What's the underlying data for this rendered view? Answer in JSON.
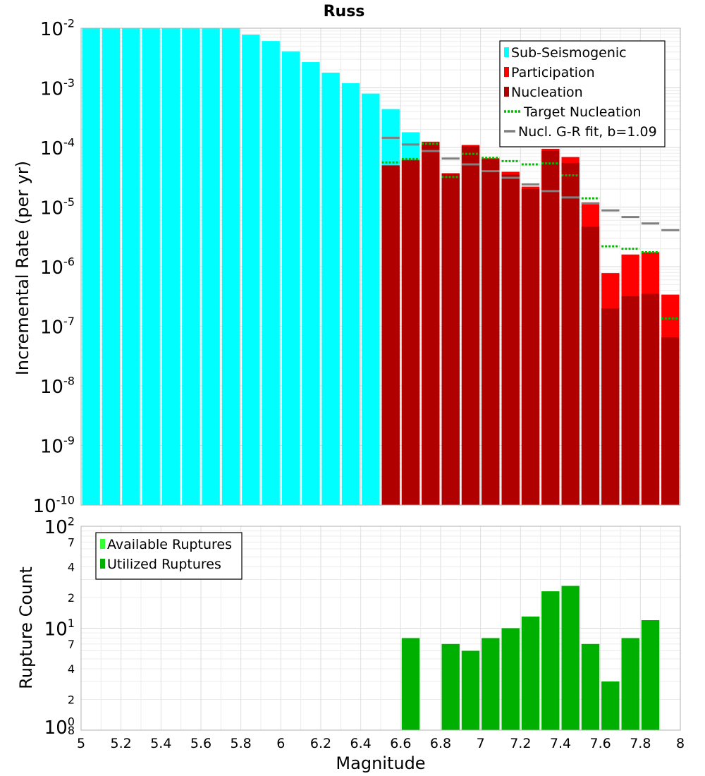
{
  "chart_data": [
    {
      "type": "bar",
      "title": "Russ",
      "xlabel": "",
      "ylabel": "Incremental Rate (per yr)",
      "xlim": [
        5,
        8
      ],
      "ylim": [
        1e-10,
        0.01
      ],
      "yscale": "log",
      "grid": true,
      "legend_position": "top-right",
      "y_tick_labels": [
        {
          "base": "10",
          "exp": "-10"
        },
        {
          "base": "10",
          "exp": "-9"
        },
        {
          "base": "10",
          "exp": "-8"
        },
        {
          "base": "10",
          "exp": "-7"
        },
        {
          "base": "10",
          "exp": "-6"
        },
        {
          "base": "10",
          "exp": "-5"
        },
        {
          "base": "10",
          "exp": "-4"
        },
        {
          "base": "10",
          "exp": "-3"
        },
        {
          "base": "10",
          "exp": "-2"
        }
      ],
      "bin_width": 0.1,
      "series": [
        {
          "name": "Sub-Seismogenic",
          "color": "#00ffff",
          "kind": "bar",
          "x": [
            5.05,
            5.15,
            5.25,
            5.35,
            5.45,
            5.55,
            5.65,
            5.75,
            5.85,
            5.95,
            6.05,
            6.15,
            6.25,
            6.35,
            6.45,
            6.55,
            6.65
          ],
          "values": [
            0.01,
            0.01,
            0.01,
            0.01,
            0.01,
            0.01,
            0.01,
            0.01,
            0.0078,
            0.0061,
            0.0041,
            0.0027,
            0.0018,
            0.0012,
            0.0008,
            0.00044,
            0.00018
          ]
        },
        {
          "name": "Participation",
          "color": "#ff0000",
          "kind": "bar",
          "x": [
            6.55,
            6.65,
            6.75,
            6.85,
            6.95,
            7.05,
            7.15,
            7.25,
            7.35,
            7.45,
            7.55,
            7.65,
            7.75,
            7.85,
            7.95
          ],
          "values": [
            5e-05,
            6.2e-05,
            0.000125,
            3.7e-05,
            0.00011,
            6.6e-05,
            3.9e-05,
            2.2e-05,
            9.5e-05,
            6.9e-05,
            1.2e-05,
            7.8e-07,
            1.6e-06,
            1.75e-06,
            3.4e-07
          ]
        },
        {
          "name": "Nucleation",
          "color": "#b00000",
          "kind": "bar",
          "x": [
            6.55,
            6.65,
            6.75,
            6.85,
            6.95,
            7.05,
            7.15,
            7.25,
            7.35,
            7.45,
            7.55,
            7.65,
            7.75,
            7.85,
            7.95
          ],
          "values": [
            5e-05,
            6e-05,
            0.00012,
            3.6e-05,
            0.000105,
            6.3e-05,
            3.5e-05,
            2e-05,
            8.8e-05,
            5.5e-05,
            4.7e-06,
            2e-07,
            3.2e-07,
            3.5e-07,
            6.5e-08
          ]
        },
        {
          "name": "Target Nucleation",
          "color": "#00bb00",
          "kind": "dotted-step",
          "x": [
            6.55,
            6.65,
            6.75,
            6.85,
            6.95,
            7.05,
            7.15,
            7.25,
            7.35,
            7.45,
            7.55,
            7.65,
            7.75,
            7.85,
            7.95
          ],
          "values": [
            5.6e-05,
            6.4e-05,
            0.000115,
            3.2e-05,
            7.8e-05,
            6.7e-05,
            5.9e-05,
            5.2e-05,
            5.4e-05,
            3.4e-05,
            1.4e-05,
            2.2e-06,
            2e-06,
            1.75e-06,
            1.35e-07
          ]
        },
        {
          "name": "Nucl. G-R fit, b=1.09",
          "color": "#808080",
          "kind": "step",
          "x": [
            6.55,
            6.65,
            6.75,
            6.85,
            6.95,
            7.05,
            7.15,
            7.25,
            7.35,
            7.45,
            7.55,
            7.65,
            7.75,
            7.85,
            7.95
          ],
          "values": [
            0.000145,
            0.000112,
            8.7e-05,
            6.5e-05,
            5.2e-05,
            4e-05,
            3.1e-05,
            2.4e-05,
            1.85e-05,
            1.45e-05,
            1.15e-05,
            8.8e-06,
            6.8e-06,
            5.3e-06,
            4.1e-06
          ]
        }
      ],
      "legend": [
        {
          "label": "Sub-Seismogenic",
          "color": "#00ffff",
          "kind": "box"
        },
        {
          "label": "Participation",
          "color": "#ff0000",
          "kind": "box"
        },
        {
          "label": "Nucleation",
          "color": "#b00000",
          "kind": "box"
        },
        {
          "label": " Target Nucleation",
          "color": "#00bb00",
          "kind": "dotted"
        },
        {
          "label": "Nucl. G-R fit, b=1.09",
          "color": "#808080",
          "kind": "line"
        }
      ]
    },
    {
      "type": "bar",
      "title": "",
      "xlabel": "Magnitude",
      "ylabel": "Rupture Count",
      "xlim": [
        5,
        8
      ],
      "ylim": [
        1,
        100
      ],
      "yscale": "log",
      "grid": true,
      "legend_position": "top-left",
      "x_tick_labels": [
        "5",
        "5.2",
        "5.4",
        "5.6",
        "5.8",
        "6",
        "6.2",
        "6.4",
        "6.6",
        "6.8",
        "7",
        "7.2",
        "7.4",
        "7.6",
        "7.8",
        "8"
      ],
      "y_tick_labels": [
        {
          "value": 1,
          "base": "10",
          "exp": "0"
        },
        {
          "value": 10,
          "base": "10",
          "exp": "1"
        },
        {
          "value": 100,
          "base": "10",
          "exp": "2"
        }
      ],
      "y_minor_tick_labels": [
        {
          "value": 0.8,
          "label": "8"
        },
        {
          "value": 2,
          "label": "2"
        },
        {
          "value": 4,
          "label": "4"
        },
        {
          "value": 7,
          "label": "7"
        },
        {
          "value": 20,
          "label": "2"
        },
        {
          "value": 40,
          "label": "4"
        },
        {
          "value": 70,
          "label": "7"
        }
      ],
      "series": [
        {
          "name": "Available Ruptures",
          "color": "#33ff33",
          "kind": "bar",
          "x": [
            6.65,
            6.85,
            6.95,
            7.05,
            7.15,
            7.25,
            7.35,
            7.45,
            7.55,
            7.65,
            7.75,
            7.85
          ],
          "values": [
            8,
            7,
            6,
            8,
            10,
            13,
            23,
            26,
            7,
            3,
            8,
            12
          ]
        },
        {
          "name": "Utilized Ruptures",
          "color": "#00b000",
          "kind": "bar",
          "x": [
            6.65,
            6.85,
            6.95,
            7.05,
            7.15,
            7.25,
            7.35,
            7.45,
            7.55,
            7.65,
            7.75,
            7.85
          ],
          "values": [
            8,
            7,
            6,
            8,
            10,
            13,
            23,
            26,
            7,
            3,
            8,
            12
          ]
        }
      ],
      "legend": [
        {
          "label": "Available Ruptures",
          "color": "#33ff33",
          "kind": "box"
        },
        {
          "label": "Utilized Ruptures",
          "color": "#00b000",
          "kind": "box"
        }
      ]
    }
  ]
}
